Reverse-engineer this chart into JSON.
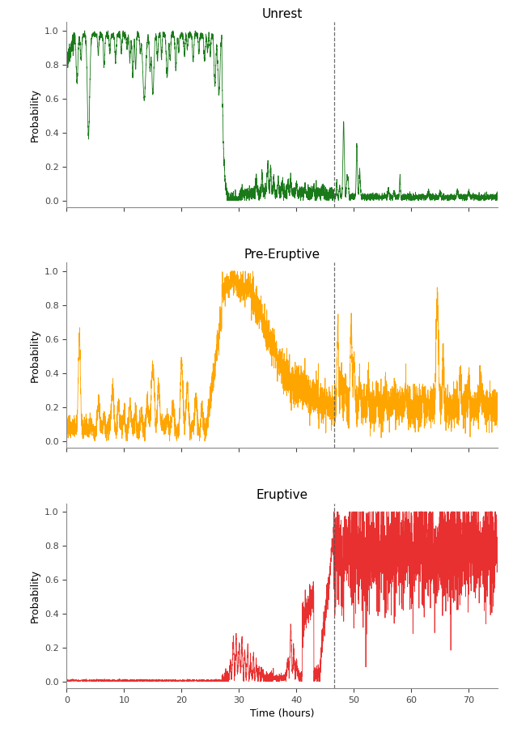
{
  "title_unrest": "Unrest",
  "title_pre_eruptive": "Pre-Eruptive",
  "title_eruptive": "Eruptive",
  "xlabel": "Time (hours)",
  "ylabel": "Probability",
  "color_unrest": "#1a7a1a",
  "color_pre_eruptive": "#FFA500",
  "color_eruptive": "#e83030",
  "dashed_line_x": 46.5,
  "xlim": [
    0,
    75
  ],
  "ylim": [
    0.0,
    1.05
  ],
  "yticks": [
    0.0,
    0.2,
    0.4,
    0.6,
    0.8,
    1.0
  ],
  "xticks": [
    0,
    10,
    20,
    30,
    40,
    50,
    60,
    70
  ],
  "figsize": [
    6.34,
    9.14
  ],
  "dpi": 100,
  "seed": 42
}
